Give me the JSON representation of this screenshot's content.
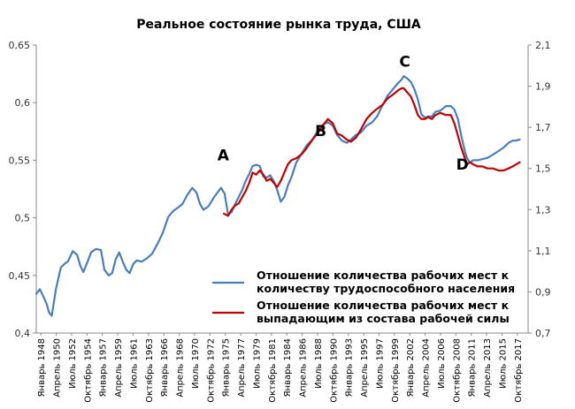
{
  "chart_data": {
    "type": "line",
    "title": "Реальное состояние рынка труда, США",
    "y_left": {
      "ylim": [
        0.4,
        0.65
      ],
      "ticks": [
        "0,4",
        "0,45",
        "0,5",
        "0,55",
        "0,6",
        "0,65"
      ]
    },
    "y_right": {
      "ylim": [
        0.7,
        2.1
      ],
      "ticks": [
        "0,7",
        "0,9",
        "1,1",
        "1,3",
        "1,5",
        "1,7",
        "1,9",
        "2,1"
      ]
    },
    "x_tick_labels": [
      "Январь 1948",
      "Апрель 1950",
      "Июль 1952",
      "Октябрь 1954",
      "Январь 1957",
      "Апрель 1959",
      "Июль 1961",
      "Октябрь 1963",
      "Январь 1966",
      "Апрель 1968",
      "Июль 1970",
      "Октябрь 1972",
      "Январь 1975",
      "Апрель 1977",
      "Июль 1979",
      "Октябрь 1981",
      "Январь 1984",
      "Апрель 1986",
      "Июль 1988",
      "Октябрь 1990",
      "Январь 1993",
      "Апрель 1995",
      "Июль 1997",
      "Октябрь 1999",
      "Январь 2002",
      "Апрель 2004",
      "Июль 2006",
      "Октябрь 2008",
      "Январь 2011",
      "Апрель 2013",
      "Июль 2015",
      "Октябрь 2017"
    ],
    "x_range": [
      1948,
      2018
    ],
    "grid": false,
    "legend_position": "bottom-right",
    "annotations": [
      {
        "label": "A",
        "x": 1974.6
      },
      {
        "label": "B",
        "x": 1989.0
      },
      {
        "label": "C",
        "x": 2000.2
      },
      {
        "label": "D",
        "x": 2009.4
      }
    ],
    "series": [
      {
        "name": "Отношение количества рабочих мест к количеству трудоспособного населения",
        "color": "#4a7ebb",
        "axis": "left",
        "x": [
          1948.0,
          1948.5,
          1949.0,
          1949.5,
          1949.8,
          1950.2,
          1950.8,
          1951.5,
          1952.2,
          1952.5,
          1953.2,
          1953.8,
          1954.3,
          1954.7,
          1955.3,
          1955.8,
          1956.5,
          1957.2,
          1957.7,
          1958.3,
          1958.8,
          1959.3,
          1959.8,
          1960.3,
          1960.8,
          1961.3,
          1961.8,
          1962.3,
          1963.0,
          1963.8,
          1964.5,
          1965.3,
          1966.0,
          1966.8,
          1967.5,
          1968.2,
          1968.8,
          1969.5,
          1970.2,
          1970.8,
          1971.3,
          1971.8,
          1972.5,
          1973.2,
          1973.8,
          1974.3,
          1974.8,
          1975.3,
          1975.8,
          1976.3,
          1976.8,
          1977.3,
          1977.8,
          1978.3,
          1978.8,
          1979.3,
          1979.8,
          1980.3,
          1980.8,
          1981.3,
          1981.8,
          1982.3,
          1982.8,
          1983.3,
          1983.8,
          1984.3,
          1985.0,
          1985.8,
          1986.5,
          1987.3,
          1988.0,
          1988.8,
          1989.5,
          1990.2,
          1990.8,
          1991.5,
          1992.2,
          1992.8,
          1993.5,
          1994.2,
          1995.0,
          1995.8,
          1996.5,
          1997.3,
          1998.0,
          1998.8,
          1999.5,
          2000.0,
          2000.3,
          2000.8,
          2001.3,
          2001.8,
          2002.3,
          2002.8,
          2003.3,
          2003.8,
          2004.3,
          2004.8,
          2005.5,
          2006.3,
          2007.0,
          2007.5,
          2008.0,
          2008.5,
          2009.0,
          2009.3,
          2009.7,
          2010.2,
          2010.8,
          2011.5,
          2012.2,
          2013.0,
          2013.8,
          2014.5,
          2015.2,
          2015.8,
          2016.3,
          2016.8
        ],
        "y": [
          0.434,
          0.438,
          0.432,
          0.425,
          0.418,
          0.415,
          0.438,
          0.457,
          0.461,
          0.462,
          0.471,
          0.468,
          0.458,
          0.453,
          0.462,
          0.47,
          0.473,
          0.472,
          0.455,
          0.45,
          0.452,
          0.464,
          0.47,
          0.462,
          0.455,
          0.452,
          0.46,
          0.463,
          0.462,
          0.465,
          0.469,
          0.478,
          0.487,
          0.501,
          0.506,
          0.509,
          0.512,
          0.52,
          0.526,
          0.522,
          0.512,
          0.507,
          0.51,
          0.517,
          0.522,
          0.526,
          0.521,
          0.503,
          0.505,
          0.512,
          0.518,
          0.524,
          0.532,
          0.538,
          0.545,
          0.546,
          0.545,
          0.536,
          0.535,
          0.537,
          0.532,
          0.524,
          0.514,
          0.518,
          0.528,
          0.535,
          0.548,
          0.556,
          0.563,
          0.568,
          0.575,
          0.581,
          0.583,
          0.58,
          0.572,
          0.567,
          0.565,
          0.568,
          0.572,
          0.574,
          0.58,
          0.583,
          0.588,
          0.598,
          0.606,
          0.612,
          0.617,
          0.62,
          0.623,
          0.621,
          0.618,
          0.612,
          0.603,
          0.59,
          0.587,
          0.588,
          0.588,
          0.592,
          0.593,
          0.597,
          0.597,
          0.594,
          0.586,
          0.571,
          0.558,
          0.552,
          0.548,
          0.55,
          0.55,
          0.551,
          0.552,
          0.555,
          0.558,
          0.561,
          0.565,
          0.567,
          0.567,
          0.568
        ]
      },
      {
        "name": "Отношение количества рабочих мест к выпадающим из состава рабочей силы",
        "color": "#c00000",
        "axis": "right",
        "x": [
          1974.7,
          1975.3,
          1975.8,
          1976.3,
          1976.8,
          1977.3,
          1977.8,
          1978.3,
          1978.8,
          1979.3,
          1979.8,
          1980.3,
          1980.8,
          1981.3,
          1981.8,
          1982.3,
          1982.8,
          1983.3,
          1983.8,
          1984.3,
          1985.0,
          1985.8,
          1986.5,
          1987.3,
          1988.0,
          1988.8,
          1989.5,
          1990.2,
          1990.8,
          1991.5,
          1992.2,
          1992.8,
          1993.5,
          1994.2,
          1995.0,
          1995.8,
          1996.5,
          1997.3,
          1998.0,
          1998.8,
          1999.5,
          2000.0,
          2000.3,
          2000.8,
          2001.3,
          2001.8,
          2002.3,
          2002.8,
          2003.3,
          2003.8,
          2004.3,
          2004.8,
          2005.5,
          2006.3,
          2007.0,
          2007.5,
          2008.0,
          2008.5,
          2009.0,
          2009.3,
          2009.7,
          2010.2,
          2010.8,
          2011.5,
          2012.2,
          2013.0,
          2013.8,
          2014.5,
          2015.2,
          2015.8,
          2016.3,
          2016.8
        ],
        "y": [
          1.28,
          1.27,
          1.3,
          1.32,
          1.33,
          1.36,
          1.39,
          1.43,
          1.48,
          1.47,
          1.49,
          1.47,
          1.44,
          1.45,
          1.43,
          1.41,
          1.44,
          1.48,
          1.52,
          1.54,
          1.55,
          1.57,
          1.6,
          1.64,
          1.67,
          1.71,
          1.74,
          1.72,
          1.67,
          1.66,
          1.64,
          1.63,
          1.65,
          1.69,
          1.74,
          1.77,
          1.79,
          1.81,
          1.84,
          1.86,
          1.88,
          1.89,
          1.89,
          1.87,
          1.85,
          1.81,
          1.76,
          1.74,
          1.74,
          1.75,
          1.74,
          1.76,
          1.77,
          1.76,
          1.76,
          1.72,
          1.66,
          1.6,
          1.55,
          1.52,
          1.53,
          1.52,
          1.51,
          1.51,
          1.5,
          1.5,
          1.49,
          1.49,
          1.5,
          1.51,
          1.52,
          1.53
        ]
      }
    ]
  }
}
